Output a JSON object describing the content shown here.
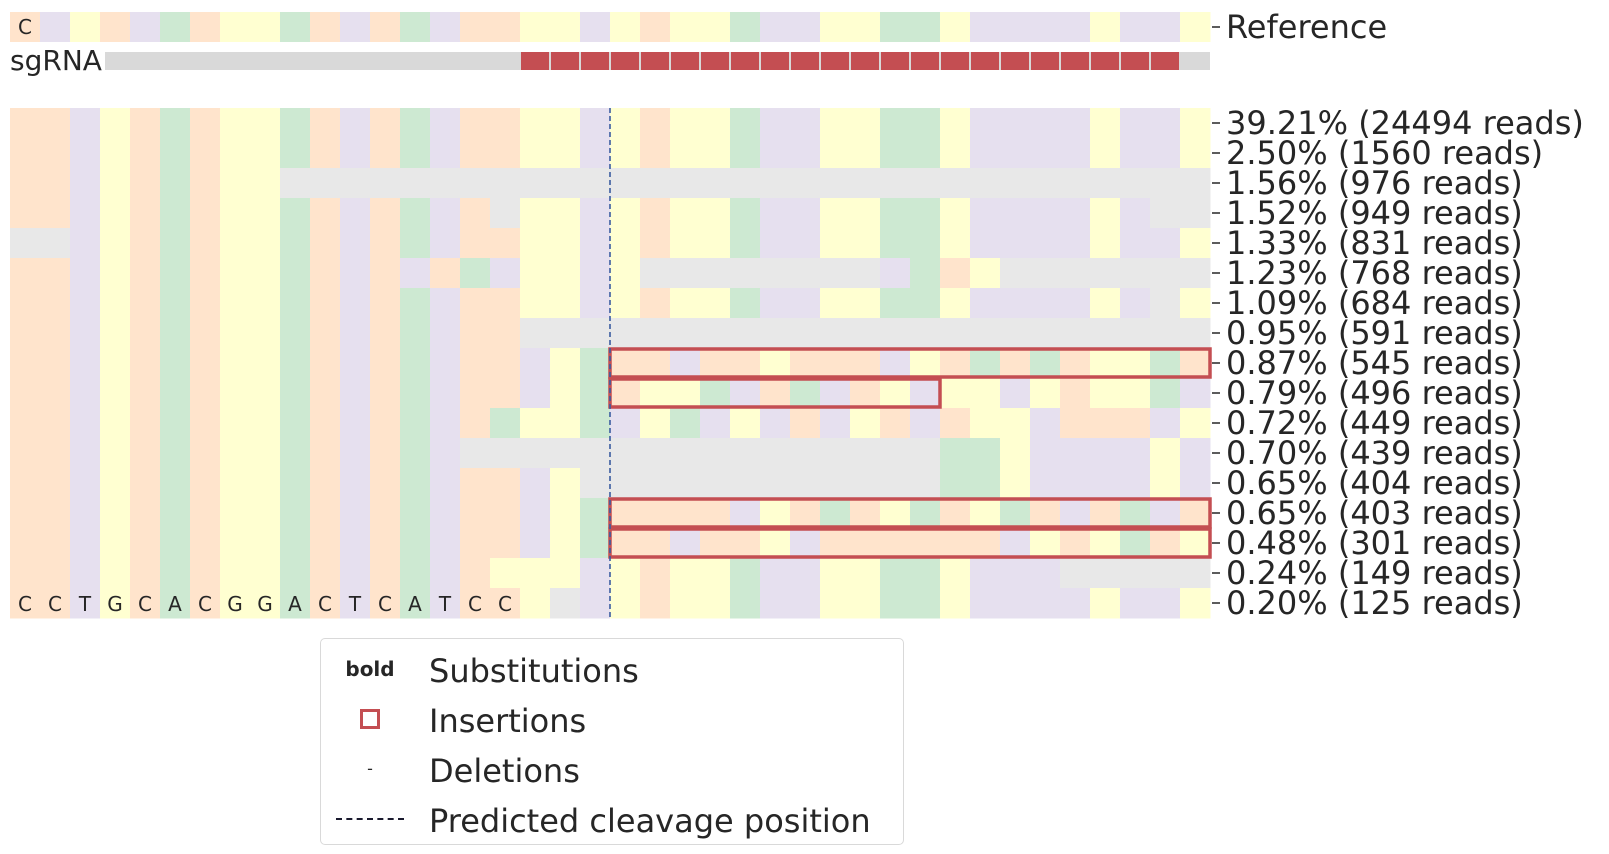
{
  "chart_data": {
    "type": "heatmap",
    "title": "",
    "reference_label": "Reference",
    "sgrna_label": "sgRNA",
    "reference_first_base": "C",
    "row_labels": [
      "39.21% (24494 reads)",
      "2.50% (1560 reads)",
      "1.56% (976 reads)",
      "1.52% (949 reads)",
      "1.33% (831 reads)",
      "1.23% (768 reads)",
      "1.09% (684 reads)",
      "0.95% (591 reads)",
      "0.87% (545 reads)",
      "0.79% (496 reads)",
      "0.72% (449 reads)",
      "0.70% (439 reads)",
      "0.65% (404 reads)",
      "0.65% (403 reads)",
      "0.48% (301 reads)",
      "0.24% (149 reads)",
      "0.20% (125 reads)"
    ],
    "percentages": [
      39.21,
      2.5,
      1.56,
      1.52,
      1.33,
      1.23,
      1.09,
      0.95,
      0.87,
      0.79,
      0.72,
      0.7,
      0.65,
      0.65,
      0.48,
      0.24,
      0.2
    ],
    "reads": [
      24494,
      1560,
      976,
      949,
      831,
      768,
      684,
      591,
      545,
      496,
      449,
      439,
      404,
      403,
      301,
      149,
      125
    ],
    "bottom_row_visible_bases": [
      "C",
      "C",
      "T",
      "G",
      "C",
      "A",
      "C",
      "G",
      "G",
      "A",
      "C",
      "T",
      "C",
      "A",
      "T",
      "C",
      "C"
    ],
    "reference_colors": [
      "A",
      "C",
      "T",
      "A",
      "C",
      "G",
      "A",
      "T",
      "T",
      "G",
      "A",
      "C",
      "A",
      "G",
      "C",
      "A",
      "A",
      "T",
      "T",
      "C",
      "T",
      "A",
      "T",
      "T",
      "G",
      "C",
      "C",
      "T",
      "T",
      "G",
      "G",
      "T",
      "C",
      "C",
      "C",
      "C",
      "T",
      "C",
      "C",
      "T",
      "C",
      "G",
      "G",
      "T",
      "C"
    ],
    "rows": [
      [
        "A",
        "A",
        "C",
        "T",
        "A",
        "G",
        "A",
        "T",
        "T",
        "G",
        "A",
        "C",
        "A",
        "G",
        "C",
        "A",
        "A",
        "T",
        "T",
        "C",
        "T",
        "A",
        "T",
        "T",
        "G",
        "C",
        "C",
        "T",
        "T",
        "G",
        "G",
        "T",
        "C",
        "C",
        "C",
        "C",
        "T",
        "C",
        "C",
        "T",
        "C",
        "G",
        "G",
        "T",
        "C"
      ],
      [
        "A",
        "A",
        "C",
        "T",
        "A",
        "G",
        "A",
        "T",
        "T",
        "G",
        "A",
        "C",
        "A",
        "G",
        "C",
        "A",
        "A",
        "T",
        "T",
        "C",
        "T",
        "A",
        "T",
        "T",
        "G",
        "C",
        "C",
        "T",
        "T",
        "G",
        "G",
        "T",
        "C",
        "C",
        "C",
        "C",
        "T",
        "C",
        "C",
        "T",
        "C",
        "G",
        "G",
        "T",
        "C"
      ],
      [
        "A",
        "A",
        "C",
        "T",
        "A",
        "G",
        "A",
        "T",
        "T",
        "-",
        "-",
        "-",
        "-",
        "-",
        "-",
        "-",
        "-",
        "-",
        "-",
        "-",
        "-",
        "-",
        "-",
        "-",
        "-",
        "-",
        "-",
        "-",
        "-",
        "-",
        "-",
        "-",
        "-",
        "-",
        "-",
        "-",
        "-",
        "-",
        "-",
        "-",
        "-",
        "-",
        "-",
        "-",
        "-"
      ],
      [
        "A",
        "A",
        "C",
        "T",
        "A",
        "G",
        "A",
        "T",
        "T",
        "G",
        "A",
        "C",
        "A",
        "G",
        "C",
        "A",
        "-",
        "T",
        "T",
        "C",
        "T",
        "A",
        "T",
        "T",
        "G",
        "C",
        "C",
        "T",
        "T",
        "G",
        "G",
        "T",
        "C",
        "C",
        "C",
        "C",
        "T",
        "C",
        "-",
        "-",
        "T",
        "C",
        "G",
        "T",
        "C"
      ],
      [
        "-",
        "-",
        "C",
        "T",
        "A",
        "G",
        "A",
        "T",
        "T",
        "G",
        "A",
        "C",
        "A",
        "G",
        "C",
        "A",
        "A",
        "T",
        "T",
        "C",
        "T",
        "A",
        "T",
        "T",
        "G",
        "C",
        "C",
        "T",
        "T",
        "G",
        "G",
        "T",
        "C",
        "C",
        "C",
        "C",
        "T",
        "C",
        "C",
        "T",
        "C",
        "G",
        "G",
        "T",
        "C"
      ],
      [
        "A",
        "A",
        "C",
        "T",
        "A",
        "G",
        "A",
        "T",
        "T",
        "G",
        "A",
        "C",
        "A",
        "C",
        "A",
        "G",
        "C",
        "T",
        "T",
        "C",
        "T",
        "-",
        "-",
        "-",
        "-",
        "-",
        "-",
        "-",
        "-",
        "C",
        "G",
        "A",
        "T",
        "-",
        "-",
        "-",
        "-",
        "-",
        "-",
        "-",
        "-",
        "G",
        "G",
        "T",
        "C"
      ],
      [
        "A",
        "A",
        "C",
        "T",
        "A",
        "G",
        "A",
        "T",
        "T",
        "G",
        "A",
        "C",
        "A",
        "G",
        "C",
        "A",
        "A",
        "T",
        "T",
        "C",
        "T",
        "A",
        "T",
        "T",
        "G",
        "C",
        "C",
        "T",
        "T",
        "G",
        "G",
        "T",
        "C",
        "C",
        "C",
        "C",
        "T",
        "C",
        "-",
        "T",
        "C",
        "G",
        "G",
        "T",
        "C"
      ],
      [
        "A",
        "A",
        "C",
        "T",
        "A",
        "G",
        "A",
        "T",
        "T",
        "G",
        "A",
        "C",
        "A",
        "G",
        "C",
        "A",
        "A",
        "-",
        "-",
        "-",
        "-",
        "-",
        "-",
        "-",
        "-",
        "-",
        "-",
        "-",
        "-",
        "-",
        "-",
        "-",
        "-",
        "-",
        "-",
        "-",
        "-",
        "-",
        "-",
        "-",
        "-",
        "-",
        "-",
        "-",
        "-"
      ],
      [
        "A",
        "A",
        "C",
        "T",
        "A",
        "G",
        "A",
        "T",
        "T",
        "G",
        "A",
        "C",
        "A",
        "G",
        "C",
        "A",
        "A",
        "C",
        "T",
        "G",
        "A",
        "A",
        "C",
        "A",
        "A",
        "T",
        "A",
        "A",
        "A",
        "C",
        "T",
        "A",
        "G",
        "A",
        "G",
        "A",
        "T",
        "T",
        "G",
        "A",
        "C",
        "A",
        "C",
        "A",
        "C"
      ],
      [
        "A",
        "A",
        "C",
        "T",
        "A",
        "G",
        "A",
        "T",
        "T",
        "G",
        "A",
        "C",
        "A",
        "G",
        "C",
        "A",
        "A",
        "C",
        "T",
        "G",
        "A",
        "T",
        "T",
        "G",
        "C",
        "A",
        "G",
        "C",
        "A",
        "T",
        "C",
        "T",
        "T",
        "C",
        "T",
        "A",
        "T",
        "T",
        "G",
        "C",
        "C",
        "T",
        "T",
        "T",
        "T"
      ],
      [
        "A",
        "A",
        "C",
        "T",
        "A",
        "G",
        "A",
        "T",
        "T",
        "G",
        "A",
        "C",
        "A",
        "G",
        "C",
        "A",
        "G",
        "T",
        "T",
        "G",
        "C",
        "T",
        "G",
        "C",
        "T",
        "C",
        "A",
        "C",
        "T",
        "A",
        "C",
        "A",
        "T",
        "T",
        "C",
        "A",
        "A",
        "A",
        "C",
        "T",
        "C",
        "-",
        "-",
        "T",
        "C"
      ],
      [
        "A",
        "A",
        "C",
        "T",
        "A",
        "G",
        "A",
        "T",
        "T",
        "G",
        "A",
        "C",
        "A",
        "G",
        "C",
        "-",
        "-",
        "-",
        "-",
        "-",
        "-",
        "-",
        "-",
        "-",
        "-",
        "-",
        "-",
        "-",
        "-",
        "-",
        "-",
        "G",
        "G",
        "T",
        "C",
        "C",
        "C",
        "C",
        "T",
        "C",
        "C",
        "T",
        "C",
        "G",
        "T"
      ],
      [
        "A",
        "A",
        "C",
        "T",
        "A",
        "G",
        "A",
        "T",
        "T",
        "G",
        "A",
        "C",
        "A",
        "G",
        "C",
        "A",
        "A",
        "C",
        "T",
        "-",
        "-",
        "-",
        "-",
        "-",
        "-",
        "-",
        "-",
        "-",
        "-",
        "-",
        "-",
        "G",
        "G",
        "T",
        "C",
        "C",
        "C",
        "C",
        "T",
        "C",
        "C",
        "T",
        "C",
        "G",
        "C"
      ],
      [
        "A",
        "A",
        "C",
        "T",
        "A",
        "G",
        "A",
        "T",
        "T",
        "G",
        "A",
        "C",
        "A",
        "G",
        "C",
        "A",
        "A",
        "C",
        "T",
        "G",
        "A",
        "A",
        "A",
        "A",
        "C",
        "T",
        "A",
        "G",
        "A",
        "T",
        "G",
        "A",
        "T",
        "G",
        "A",
        "C",
        "A",
        "G",
        "C",
        "A",
        "A",
        "C",
        "T",
        "A",
        "T"
      ],
      [
        "A",
        "A",
        "C",
        "T",
        "A",
        "G",
        "A",
        "T",
        "T",
        "G",
        "A",
        "C",
        "A",
        "G",
        "C",
        "A",
        "A",
        "C",
        "T",
        "G",
        "A",
        "A",
        "C",
        "A",
        "A",
        "T",
        "C",
        "A",
        "A",
        "A",
        "A",
        "A",
        "A",
        "C",
        "T",
        "A",
        "T",
        "G",
        "A",
        "T",
        "C",
        "C",
        "T",
        "A",
        "T"
      ],
      [
        "A",
        "A",
        "C",
        "T",
        "A",
        "G",
        "A",
        "T",
        "T",
        "G",
        "A",
        "C",
        "A",
        "G",
        "C",
        "A",
        "T",
        "T",
        "T",
        "C",
        "T",
        "A",
        "T",
        "T",
        "G",
        "C",
        "C",
        "T",
        "T",
        "G",
        "G",
        "T",
        "C",
        "C",
        "C",
        "-",
        "-",
        "-",
        "-",
        "-",
        "-",
        "-",
        "-",
        "-",
        "-"
      ],
      [
        "A",
        "A",
        "C",
        "T",
        "A",
        "G",
        "A",
        "T",
        "T",
        "G",
        "A",
        "C",
        "A",
        "G",
        "C",
        "A",
        "A",
        "T",
        "-",
        "C",
        "T",
        "A",
        "T",
        "T",
        "G",
        "C",
        "C",
        "T",
        "T",
        "G",
        "G",
        "T",
        "C",
        "C",
        "C",
        "C",
        "T",
        "C",
        "C",
        "T",
        "C",
        "G",
        "G",
        "T",
        "C"
      ]
    ],
    "insertion_boxes": [
      {
        "row": 8,
        "start_col": 20,
        "end_col": 40
      },
      {
        "row": 9,
        "start_col": 20,
        "end_col": 31
      },
      {
        "row": 13,
        "start_col": 20,
        "end_col": 40
      },
      {
        "row": 14,
        "start_col": 20,
        "end_col": 40
      }
    ],
    "sgrna_start_col": 17,
    "sgrna_end_col": 39,
    "cleavage_col": 20,
    "base_colors": {
      "A": "#ffe4cc",
      "C": "#e6e0ef",
      "G": "#cde9d2",
      "T": "#ffffd1",
      "-": "#e8e8e8"
    },
    "sgrna_color": "#c44e52",
    "sgrna_bg": "#d9d9d9",
    "insertion_color": "#c44e52",
    "cleavage_color": "#3a5ba0"
  },
  "legend": {
    "bold_key": "bold",
    "substitutions": "Substitutions",
    "insertions": "Insertions",
    "deletions_key": "-",
    "deletions": "Deletions",
    "cleavage": "Predicted cleavage position"
  }
}
